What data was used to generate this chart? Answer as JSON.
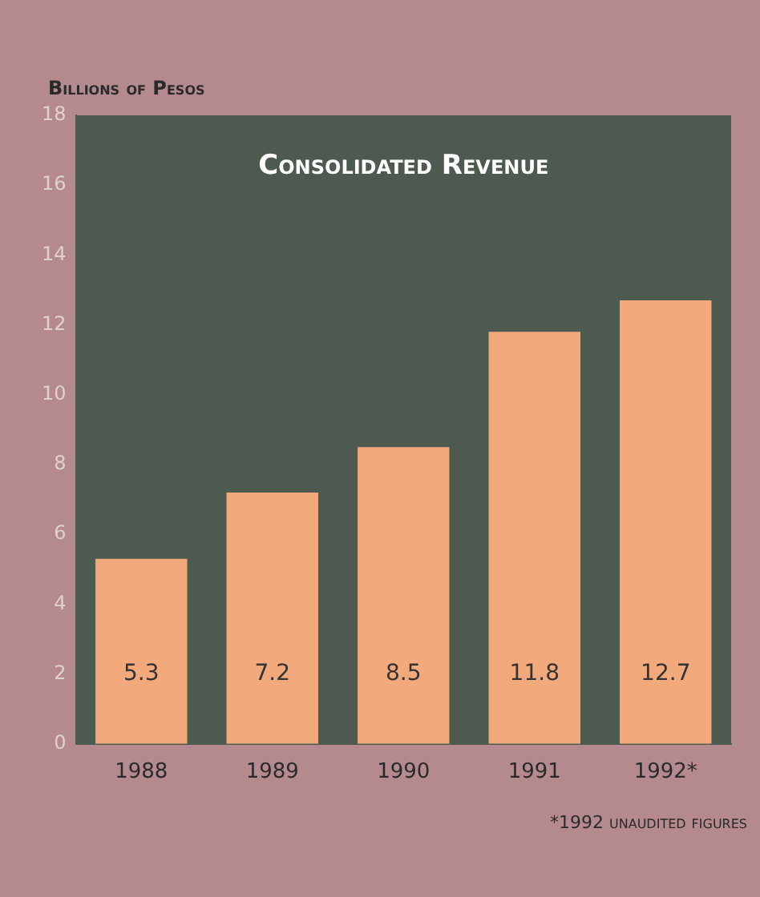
{
  "chart_data": {
    "type": "bar",
    "title": "Consolidated Revenue",
    "ylabel": "Billions of Pesos",
    "categories": [
      "1988",
      "1989",
      "1990",
      "1991",
      "1992*"
    ],
    "values": [
      5.3,
      7.2,
      8.5,
      11.8,
      12.7
    ],
    "color": "#f2a97c",
    "ylim": [
      0,
      18
    ],
    "yticks": [
      0,
      2,
      4,
      6,
      8,
      10,
      12,
      14,
      16,
      18
    ],
    "grid": false,
    "legend": false,
    "data_labels": true,
    "annotations": [
      "*1992 unaudited figures"
    ]
  }
}
